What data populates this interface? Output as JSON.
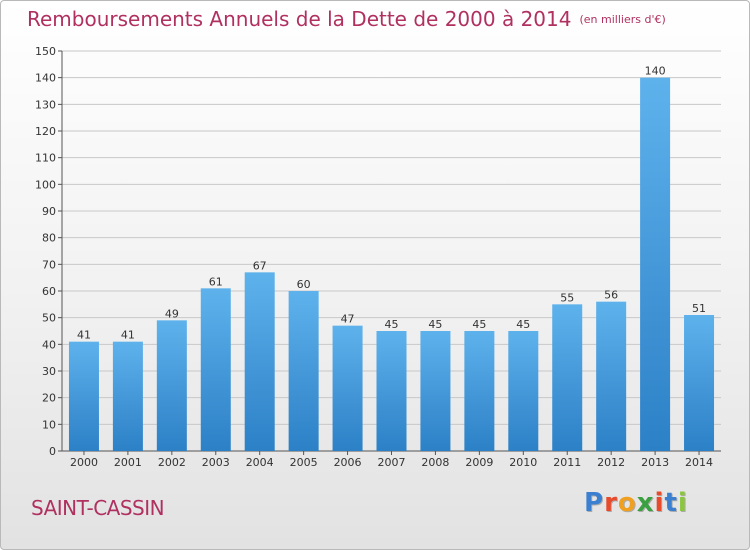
{
  "chart_data": {
    "type": "bar",
    "title": "Remboursements Annuels de la Dette de 2000 à 2014",
    "subtitle": "(en milliers d'€)",
    "categories": [
      "2000",
      "2001",
      "2002",
      "2003",
      "2004",
      "2005",
      "2006",
      "2007",
      "2008",
      "2009",
      "2010",
      "2011",
      "2012",
      "2013",
      "2014"
    ],
    "values": [
      41,
      41,
      49,
      61,
      67,
      60,
      47,
      45,
      45,
      45,
      45,
      55,
      56,
      140,
      51
    ],
    "ylim": [
      0,
      150
    ],
    "yticks": [
      0,
      10,
      20,
      30,
      40,
      50,
      60,
      70,
      80,
      90,
      100,
      110,
      120,
      130,
      140,
      150
    ],
    "grid": true,
    "bar_color": "#4a9fdc",
    "xlabel": "",
    "ylabel": ""
  },
  "commune": "SAINT-CASSIN",
  "brand": {
    "letters": [
      {
        "char": "P",
        "color": "#3a7fd0"
      },
      {
        "char": "r",
        "color": "#e84a2c"
      },
      {
        "char": "o",
        "color": "#f0a020"
      },
      {
        "char": "x",
        "color": "#3aa040"
      },
      {
        "char": "i",
        "color": "#e84a2c"
      },
      {
        "char": "t",
        "color": "#3a7fd0"
      },
      {
        "char": "i",
        "color": "#8cc63f"
      }
    ]
  },
  "colors": {
    "title": "#b03060",
    "grid": "#c8c8c8",
    "axis": "#555555"
  }
}
